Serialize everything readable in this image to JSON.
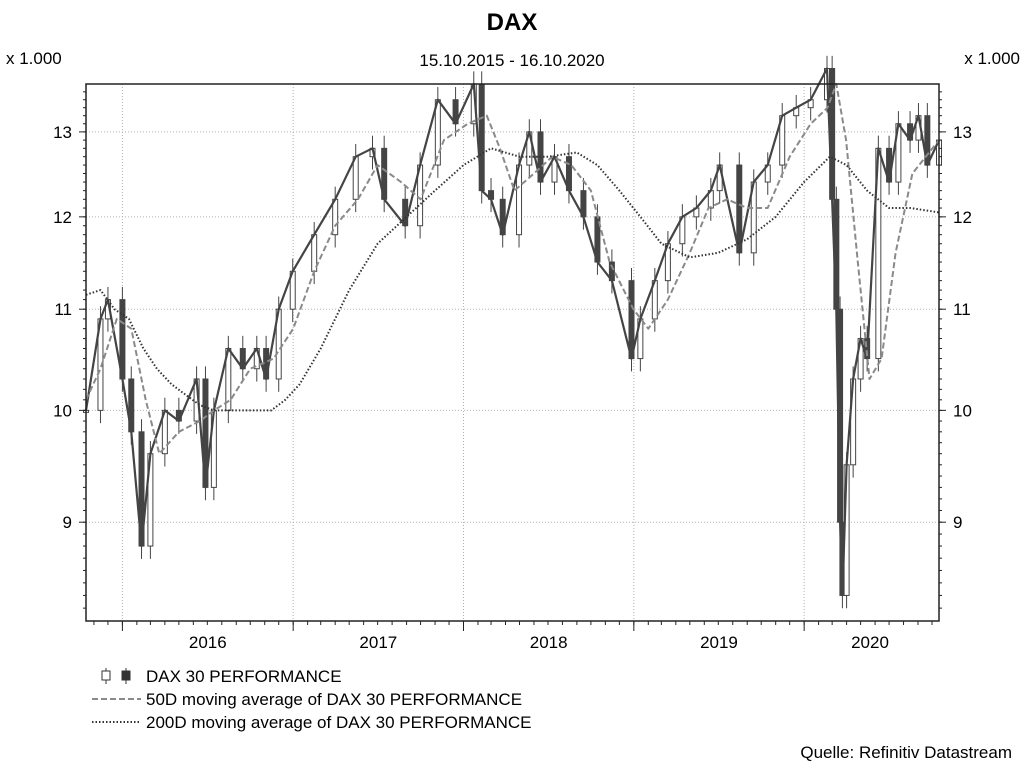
{
  "chart_data": {
    "type": "line",
    "title": "DAX",
    "subtitle": "15.10.2015 - 16.10.2020",
    "unit_left": "x 1.000",
    "unit_right": "x 1.000",
    "source": "Quelle: Refinitiv Datastream",
    "x_range": [
      "2015-10-15",
      "2020-10-16"
    ],
    "ylim": [
      8.2,
      13.6
    ],
    "y_scale": "log",
    "y_ticks": [
      9,
      10,
      11,
      12,
      13
    ],
    "x_ticks": [
      "2016",
      "2017",
      "2018",
      "2019",
      "2020"
    ],
    "grid": true,
    "legend_position": "bottom-left",
    "colors": {
      "candles": "#444444",
      "ma50": "#8a8a8a",
      "ma200": "#333333",
      "grid": "#b0b0b0"
    },
    "series": [
      {
        "name": "DAX 30 PERFORMANCE",
        "style": "candlestick",
        "x": [
          "2015-10-15",
          "2015-11-15",
          "2015-12-01",
          "2016-01-01",
          "2016-01-20",
          "2016-02-11",
          "2016-03-01",
          "2016-04-01",
          "2016-05-01",
          "2016-06-08",
          "2016-06-27",
          "2016-07-15",
          "2016-08-15",
          "2016-09-15",
          "2016-10-15",
          "2016-11-04",
          "2016-12-01",
          "2016-12-31",
          "2017-02-15",
          "2017-04-01",
          "2017-05-15",
          "2017-06-20",
          "2017-07-15",
          "2017-08-29",
          "2017-09-30",
          "2017-11-07",
          "2017-12-15",
          "2018-01-23",
          "2018-02-09",
          "2018-03-01",
          "2018-03-26",
          "2018-04-30",
          "2018-05-22",
          "2018-06-15",
          "2018-07-15",
          "2018-08-15",
          "2018-09-15",
          "2018-10-15",
          "2018-11-15",
          "2018-12-27",
          "2019-01-15",
          "2019-02-15",
          "2019-03-15",
          "2019-04-15",
          "2019-05-15",
          "2019-06-15",
          "2019-07-04",
          "2019-08-15",
          "2019-09-15",
          "2019-10-15",
          "2019-11-15",
          "2019-12-15",
          "2020-01-15",
          "2020-02-19",
          "2020-03-01",
          "2020-03-10",
          "2020-03-18",
          "2020-03-23",
          "2020-04-01",
          "2020-04-15",
          "2020-05-01",
          "2020-05-15",
          "2020-06-08",
          "2020-07-01",
          "2020-07-21",
          "2020-08-15",
          "2020-09-02",
          "2020-09-21",
          "2020-10-16"
        ],
        "values": [
          10.0,
          10.9,
          11.1,
          10.3,
          9.8,
          8.8,
          9.6,
          10.0,
          9.9,
          10.3,
          9.3,
          10.0,
          10.6,
          10.4,
          10.6,
          10.3,
          11.0,
          11.4,
          11.8,
          12.2,
          12.7,
          12.8,
          12.2,
          11.9,
          12.6,
          13.4,
          13.1,
          13.6,
          12.3,
          12.2,
          11.8,
          12.6,
          13.0,
          12.4,
          12.7,
          12.3,
          12.0,
          11.5,
          11.3,
          10.5,
          10.9,
          11.3,
          11.7,
          12.0,
          12.1,
          12.3,
          12.6,
          11.6,
          12.4,
          12.6,
          13.2,
          13.3,
          13.4,
          13.8,
          12.2,
          11.0,
          9.0,
          8.4,
          9.5,
          10.3,
          10.7,
          10.5,
          12.8,
          12.4,
          13.1,
          12.9,
          13.2,
          12.6,
          12.9
        ]
      },
      {
        "name": "50D moving average of DAX 30 PERFORMANCE",
        "style": "dashed",
        "x": [
          "2015-10-15",
          "2015-11-15",
          "2015-12-20",
          "2016-01-20",
          "2016-02-20",
          "2016-03-20",
          "2016-05-01",
          "2016-06-15",
          "2016-07-15",
          "2016-08-20",
          "2016-10-01",
          "2016-11-20",
          "2017-01-01",
          "2017-02-15",
          "2017-04-01",
          "2017-05-20",
          "2017-07-01",
          "2017-08-20",
          "2017-10-01",
          "2017-11-20",
          "2018-01-10",
          "2018-02-20",
          "2018-03-20",
          "2018-04-20",
          "2018-06-01",
          "2018-07-10",
          "2018-08-20",
          "2018-10-01",
          "2018-11-10",
          "2018-12-31",
          "2019-02-01",
          "2019-03-15",
          "2019-05-01",
          "2019-06-10",
          "2019-07-20",
          "2019-09-01",
          "2019-10-15",
          "2019-12-01",
          "2020-01-15",
          "2020-02-20",
          "2020-03-10",
          "2020-03-31",
          "2020-04-25",
          "2020-05-20",
          "2020-06-15",
          "2020-07-15",
          "2020-08-20",
          "2020-10-16"
        ],
        "values": [
          10.1,
          10.4,
          10.9,
          10.8,
          10.1,
          9.6,
          9.8,
          9.9,
          10.0,
          10.1,
          10.4,
          10.5,
          10.8,
          11.4,
          11.9,
          12.2,
          12.6,
          12.4,
          12.2,
          12.9,
          13.1,
          13.2,
          12.8,
          12.3,
          12.5,
          12.7,
          12.6,
          12.3,
          11.5,
          11.0,
          10.8,
          11.1,
          11.6,
          12.1,
          12.2,
          12.1,
          12.1,
          12.7,
          13.1,
          13.3,
          13.6,
          12.9,
          11.5,
          10.3,
          10.5,
          11.6,
          12.5,
          12.9
        ]
      },
      {
        "name": "200D moving average of DAX 30 PERFORMANCE",
        "style": "dotted",
        "x": [
          "2015-10-15",
          "2015-11-15",
          "2015-12-15",
          "2016-01-15",
          "2016-02-15",
          "2016-03-15",
          "2016-04-15",
          "2016-05-15",
          "2016-06-15",
          "2016-07-15",
          "2016-08-15",
          "2016-09-15",
          "2016-10-15",
          "2016-11-15",
          "2016-12-15",
          "2017-01-15",
          "2017-03-01",
          "2017-05-01",
          "2017-07-01",
          "2017-09-01",
          "2017-11-01",
          "2018-01-01",
          "2018-03-01",
          "2018-05-01",
          "2018-07-01",
          "2018-09-01",
          "2018-10-15",
          "2018-12-01",
          "2019-01-15",
          "2019-03-01",
          "2019-05-01",
          "2019-07-01",
          "2019-09-01",
          "2019-11-01",
          "2020-01-01",
          "2020-02-25",
          "2020-04-01",
          "2020-05-15",
          "2020-07-01",
          "2020-08-15",
          "2020-10-16"
        ],
        "values": [
          11.15,
          11.2,
          11.0,
          10.9,
          10.6,
          10.4,
          10.25,
          10.15,
          10.05,
          10.0,
          10.0,
          10.0,
          10.0,
          10.0,
          10.1,
          10.25,
          10.6,
          11.2,
          11.7,
          12.0,
          12.3,
          12.6,
          12.8,
          12.7,
          12.7,
          12.75,
          12.6,
          12.3,
          12.0,
          11.7,
          11.55,
          11.6,
          11.75,
          12.0,
          12.4,
          12.7,
          12.6,
          12.3,
          12.1,
          12.1,
          12.05
        ]
      }
    ]
  }
}
